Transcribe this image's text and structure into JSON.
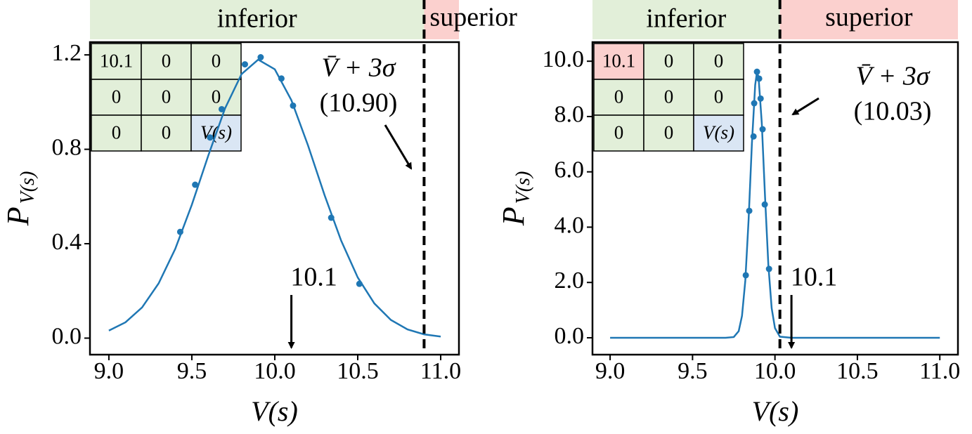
{
  "chart_data": [
    {
      "type": "line",
      "color": "#1f77b4",
      "xlabel": "V(s)",
      "ylabel": "P",
      "ylabel_subscript": "V(s)",
      "regions": [
        "inferior",
        "superior"
      ],
      "region_colors": [
        "#e2efd9",
        "#fbd0ce"
      ],
      "threshold": {
        "value": 10.9,
        "label": "(10.90)"
      },
      "threshold_text": "V̄ + 3σ",
      "marker": {
        "value": 10.1,
        "label": "10.1"
      },
      "inset_table": [
        [
          "10.1",
          "0",
          "0"
        ],
        [
          "0",
          "0",
          "0"
        ],
        [
          "0",
          "0",
          "V(s)"
        ]
      ],
      "xlim": [
        8.886,
        11.11
      ],
      "ylim": [
        -0.07,
        1.254
      ],
      "xticks": [
        {
          "value": 9,
          "label": "9.0"
        },
        {
          "value": 9.5,
          "label": "9.5"
        },
        {
          "value": 10,
          "label": "10.0"
        },
        {
          "value": 10.5,
          "label": "10.5"
        },
        {
          "value": 11,
          "label": "11.0"
        }
      ],
      "yticks": [
        {
          "value": 0,
          "label": "0.0"
        },
        {
          "value": 0.4,
          "label": "0.4"
        },
        {
          "value": 0.8,
          "label": "0.8"
        },
        {
          "value": 1.2,
          "label": "1.2"
        }
      ],
      "series": [
        {
          "style": "line",
          "x": [
            9.0,
            9.1,
            9.2,
            9.3,
            9.4,
            9.5,
            9.6,
            9.7,
            9.8,
            9.9,
            10.0,
            10.1,
            10.2,
            10.3,
            10.4,
            10.5,
            10.6,
            10.7,
            10.8,
            10.9,
            11.0
          ],
          "values": [
            0.032,
            0.067,
            0.13,
            0.232,
            0.378,
            0.565,
            0.775,
            0.973,
            1.119,
            1.18,
            1.139,
            1.008,
            0.817,
            0.606,
            0.413,
            0.257,
            0.147,
            0.077,
            0.037,
            0.016,
            0.0065
          ]
        },
        {
          "style": "markers",
          "x": [
            9.43,
            9.52,
            9.61,
            9.68,
            9.82,
            9.915,
            10.04,
            10.11,
            10.34,
            10.51
          ],
          "values": [
            0.45,
            0.65,
            0.85,
            0.97,
            1.16,
            1.19,
            1.1,
            0.985,
            0.51,
            0.23
          ]
        }
      ]
    },
    {
      "type": "line",
      "color": "#1f77b4",
      "xlabel": "V(s)",
      "ylabel": "P",
      "ylabel_subscript": "V(s)",
      "regions": [
        "inferior",
        "superior"
      ],
      "region_colors": [
        "#e2efd9",
        "#fbd0ce"
      ],
      "threshold": {
        "value": 10.03,
        "label": "(10.03)"
      },
      "threshold_text": "V̄ + 3σ",
      "marker": {
        "value": 10.1,
        "label": "10.1"
      },
      "inset_table": [
        [
          "10.1",
          "0",
          "0"
        ],
        [
          "0",
          "0",
          "0"
        ],
        [
          "0",
          "0",
          "V(s)"
        ]
      ],
      "xlim": [
        8.893,
        11.11
      ],
      "ylim": [
        -0.61,
        10.69
      ],
      "xticks": [
        {
          "value": 9,
          "label": "9.0"
        },
        {
          "value": 9.5,
          "label": "9.5"
        },
        {
          "value": 10,
          "label": "10.0"
        },
        {
          "value": 10.5,
          "label": "10.5"
        },
        {
          "value": 11,
          "label": "11.0"
        }
      ],
      "yticks": [
        {
          "value": 0,
          "label": "0.0"
        },
        {
          "value": 2,
          "label": "2.0"
        },
        {
          "value": 4,
          "label": "4.0"
        },
        {
          "value": 6,
          "label": "6.0"
        },
        {
          "value": 8,
          "label": "8.0"
        },
        {
          "value": 10,
          "label": "10.0"
        }
      ],
      "series": [
        {
          "style": "line",
          "x": [
            9.0,
            9.5,
            9.7,
            9.75,
            9.78,
            9.8,
            9.82,
            9.84,
            9.86,
            9.88,
            9.89,
            9.9,
            9.92,
            9.94,
            9.96,
            9.98,
            10.0,
            10.03,
            10.1,
            10.5,
            11.0
          ],
          "values": [
            0,
            0,
            0,
            0.026,
            0.24,
            0.79,
            2.06,
            4.26,
            7.01,
            9.14,
            9.57,
            9.46,
            7.77,
            5.07,
            2.62,
            1.07,
            0.35,
            0.04,
            0,
            0,
            0
          ]
        },
        {
          "style": "markers",
          "x": [
            9.823,
            9.844,
            9.87,
            9.874,
            9.891,
            9.904,
            9.913,
            9.925,
            9.938,
            9.964
          ],
          "values": [
            2.26,
            4.59,
            7.28,
            8.48,
            9.62,
            9.37,
            8.65,
            7.54,
            4.82,
            2.49
          ]
        }
      ]
    }
  ]
}
